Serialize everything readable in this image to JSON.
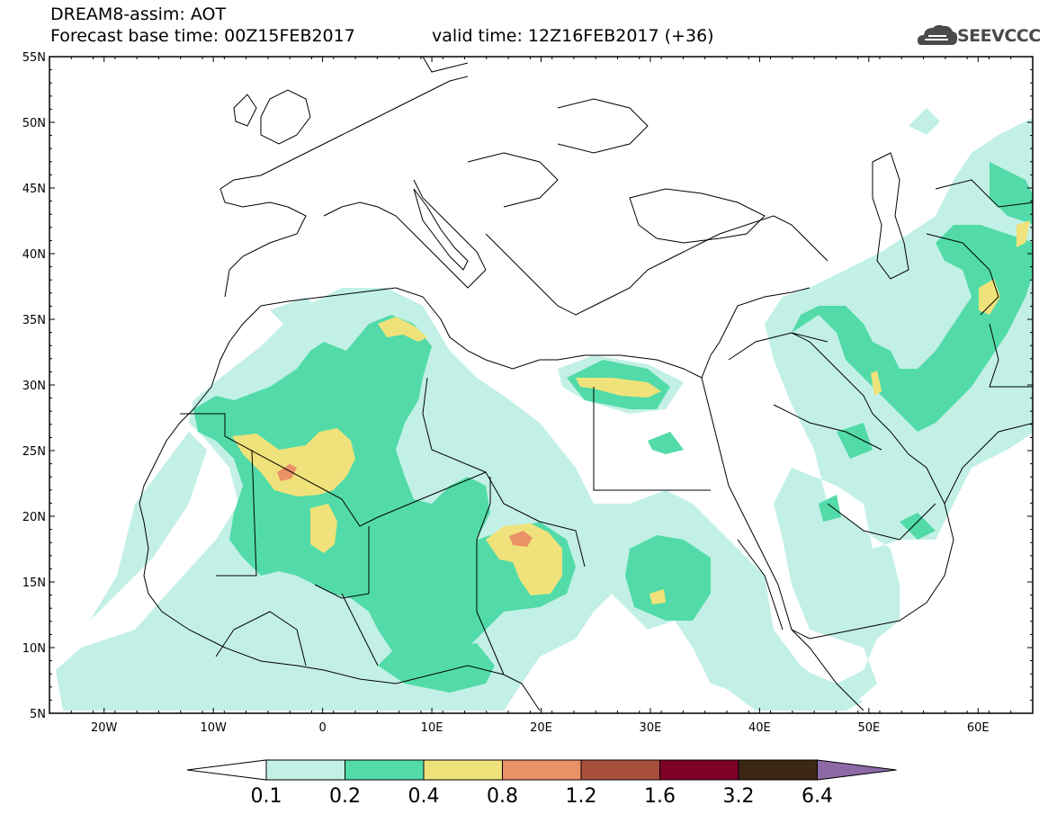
{
  "header": {
    "model_title": "DREAM8-assim: AOT",
    "base_time": "Forecast base time: 00Z15FEB2017",
    "valid_time": "valid time: 12Z16FEB2017 (+36)"
  },
  "logo": {
    "text": "SEEVCCC",
    "icon": "cloud-icon"
  },
  "map": {
    "lon_range": [
      -25,
      65
    ],
    "lat_range": [
      5,
      55
    ],
    "lat_labels": [
      "5N",
      "10N",
      "15N",
      "20N",
      "25N",
      "30N",
      "35N",
      "40N",
      "45N",
      "50N",
      "55N"
    ],
    "lon_labels": [
      "20W",
      "10W",
      "0",
      "10E",
      "20E",
      "30E",
      "40E",
      "50E",
      "60E"
    ]
  },
  "colorbar": {
    "labels": [
      "0.1",
      "0.2",
      "0.4",
      "0.8",
      "1.2",
      "1.6",
      "3.2",
      "6.4"
    ],
    "colors": [
      "#ffffff",
      "#c2f0e6",
      "#52dba8",
      "#f0e27a",
      "#eb9168",
      "#a8503d",
      "#7f0027",
      "#3d2815",
      "#8d6aa6"
    ]
  }
}
